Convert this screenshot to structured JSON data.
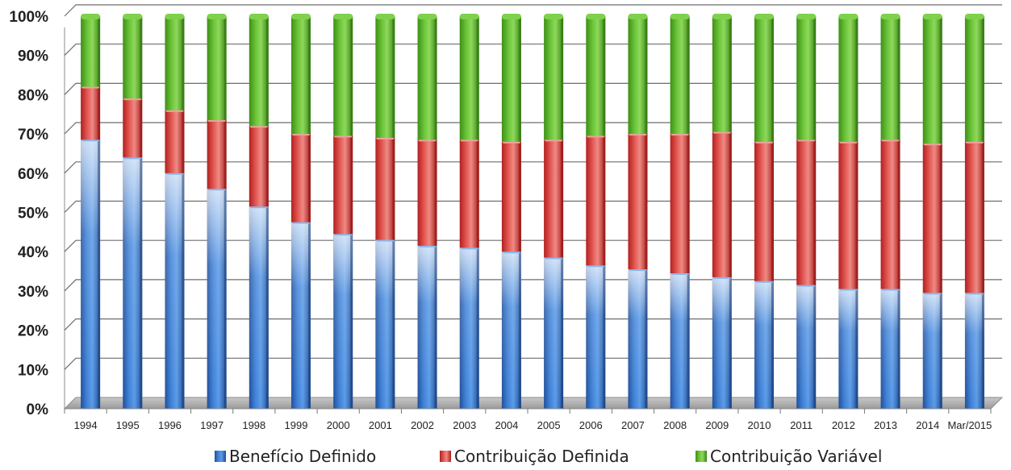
{
  "chart_data": {
    "type": "bar",
    "stacked": true,
    "percent": true,
    "title": "",
    "xlabel": "",
    "ylabel": "",
    "ylim": [
      0,
      100
    ],
    "y_ticks": [
      "0%",
      "10%",
      "20%",
      "30%",
      "40%",
      "50%",
      "60%",
      "70%",
      "80%",
      "90%",
      "100%"
    ],
    "categories": [
      "1994",
      "1995",
      "1996",
      "1997",
      "1998",
      "1999",
      "2000",
      "2001",
      "2002",
      "2003",
      "2004",
      "2005",
      "2006",
      "2007",
      "2008",
      "2009",
      "2010",
      "2011",
      "2012",
      "2013",
      "2014",
      "Mar/2015"
    ],
    "series": [
      {
        "name": "Benefício Definido",
        "color": "#2f6fbf",
        "values": [
          68.5,
          64,
          60,
          56,
          51.5,
          47.5,
          44.5,
          43,
          41.5,
          41,
          40,
          38.5,
          36.5,
          35.5,
          34.5,
          33.5,
          32.5,
          31.5,
          30.5,
          30.5,
          29.5,
          29.5
        ]
      },
      {
        "name": "Contribuição Definida",
        "color": "#d9322f",
        "values": [
          13.5,
          15,
          16,
          17.5,
          20.5,
          22.5,
          25,
          26,
          27,
          27.5,
          28,
          30,
          33,
          34.5,
          35.5,
          37,
          35.5,
          37,
          37.5,
          38,
          38,
          38.5
        ]
      },
      {
        "name": "Contribuição Variável",
        "color": "#5cb82e",
        "values": [
          18,
          21,
          24,
          26.5,
          28,
          30,
          30.5,
          31,
          31.5,
          31.5,
          32,
          31.5,
          30.5,
          30,
          30,
          29.5,
          32,
          31.5,
          32,
          31.5,
          32.5,
          32
        ]
      }
    ],
    "grid": true,
    "legend": "bottom"
  }
}
